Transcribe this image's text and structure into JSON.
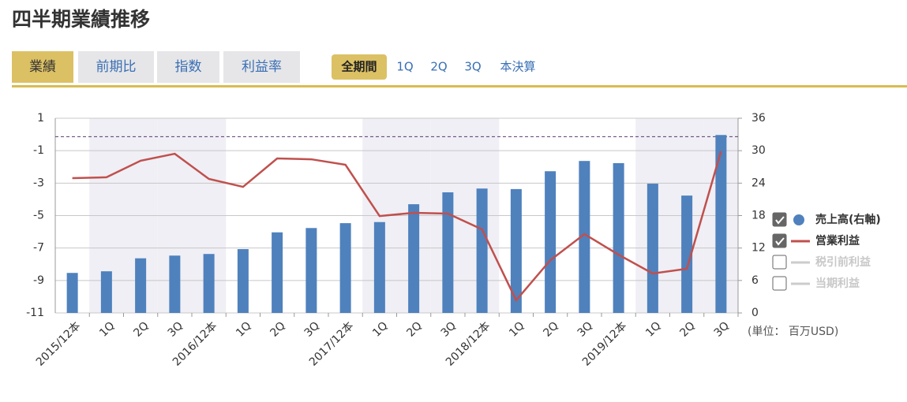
{
  "header": {
    "title": "四半期業績推移",
    "tabs": [
      "業績",
      "前期比",
      "指数",
      "利益率"
    ],
    "period_filters": [
      "全期間",
      "1Q",
      "2Q",
      "3Q",
      "本決算"
    ]
  },
  "chart_data": {
    "type": "bar-line",
    "categories": [
      "2015/12本",
      "1Q",
      "2Q",
      "3Q",
      "2016/12本",
      "1Q",
      "2Q",
      "3Q",
      "2017/12本",
      "1Q",
      "2Q",
      "3Q",
      "2018/12本",
      "1Q",
      "2Q",
      "3Q",
      "2019/12本",
      "1Q",
      "2Q",
      "3Q"
    ],
    "series": [
      {
        "name": "売上高(右軸)",
        "color": "#4f81bd",
        "kind": "bar",
        "axis": "y2",
        "values": [
          7.4,
          7.7,
          10.1,
          10.6,
          10.9,
          11.8,
          14.9,
          15.7,
          16.6,
          16.8,
          20.1,
          22.3,
          23.0,
          22.9,
          26.2,
          28.1,
          27.7,
          23.9,
          21.7,
          32.9
        ]
      },
      {
        "name": "営業利益",
        "color": "#c0504d",
        "kind": "line",
        "values": [
          -2.69,
          -2.64,
          -1.62,
          -1.19,
          -2.74,
          -3.23,
          -1.48,
          -1.53,
          -1.87,
          -5.03,
          -4.83,
          -4.88,
          -5.85,
          -10.22,
          -7.75,
          -6.14,
          -7.41,
          -8.57,
          -8.28,
          -1.04
        ]
      }
    ],
    "hidden_series": [
      {
        "name": "税引前利益",
        "color": "#cccccc"
      },
      {
        "name": "当期利益",
        "color": "#cccccc"
      }
    ],
    "reference_line": 32.6,
    "ylim": [
      -11,
      1
    ],
    "yticks": [
      1,
      -1,
      -3,
      -5,
      -7,
      -9,
      -11
    ],
    "y2lim": [
      0,
      36
    ],
    "y2ticks": [
      36,
      30,
      24,
      18,
      12,
      6,
      0
    ],
    "unit_label": "(単位： 百万USD)",
    "grid": true,
    "legend": "right"
  }
}
